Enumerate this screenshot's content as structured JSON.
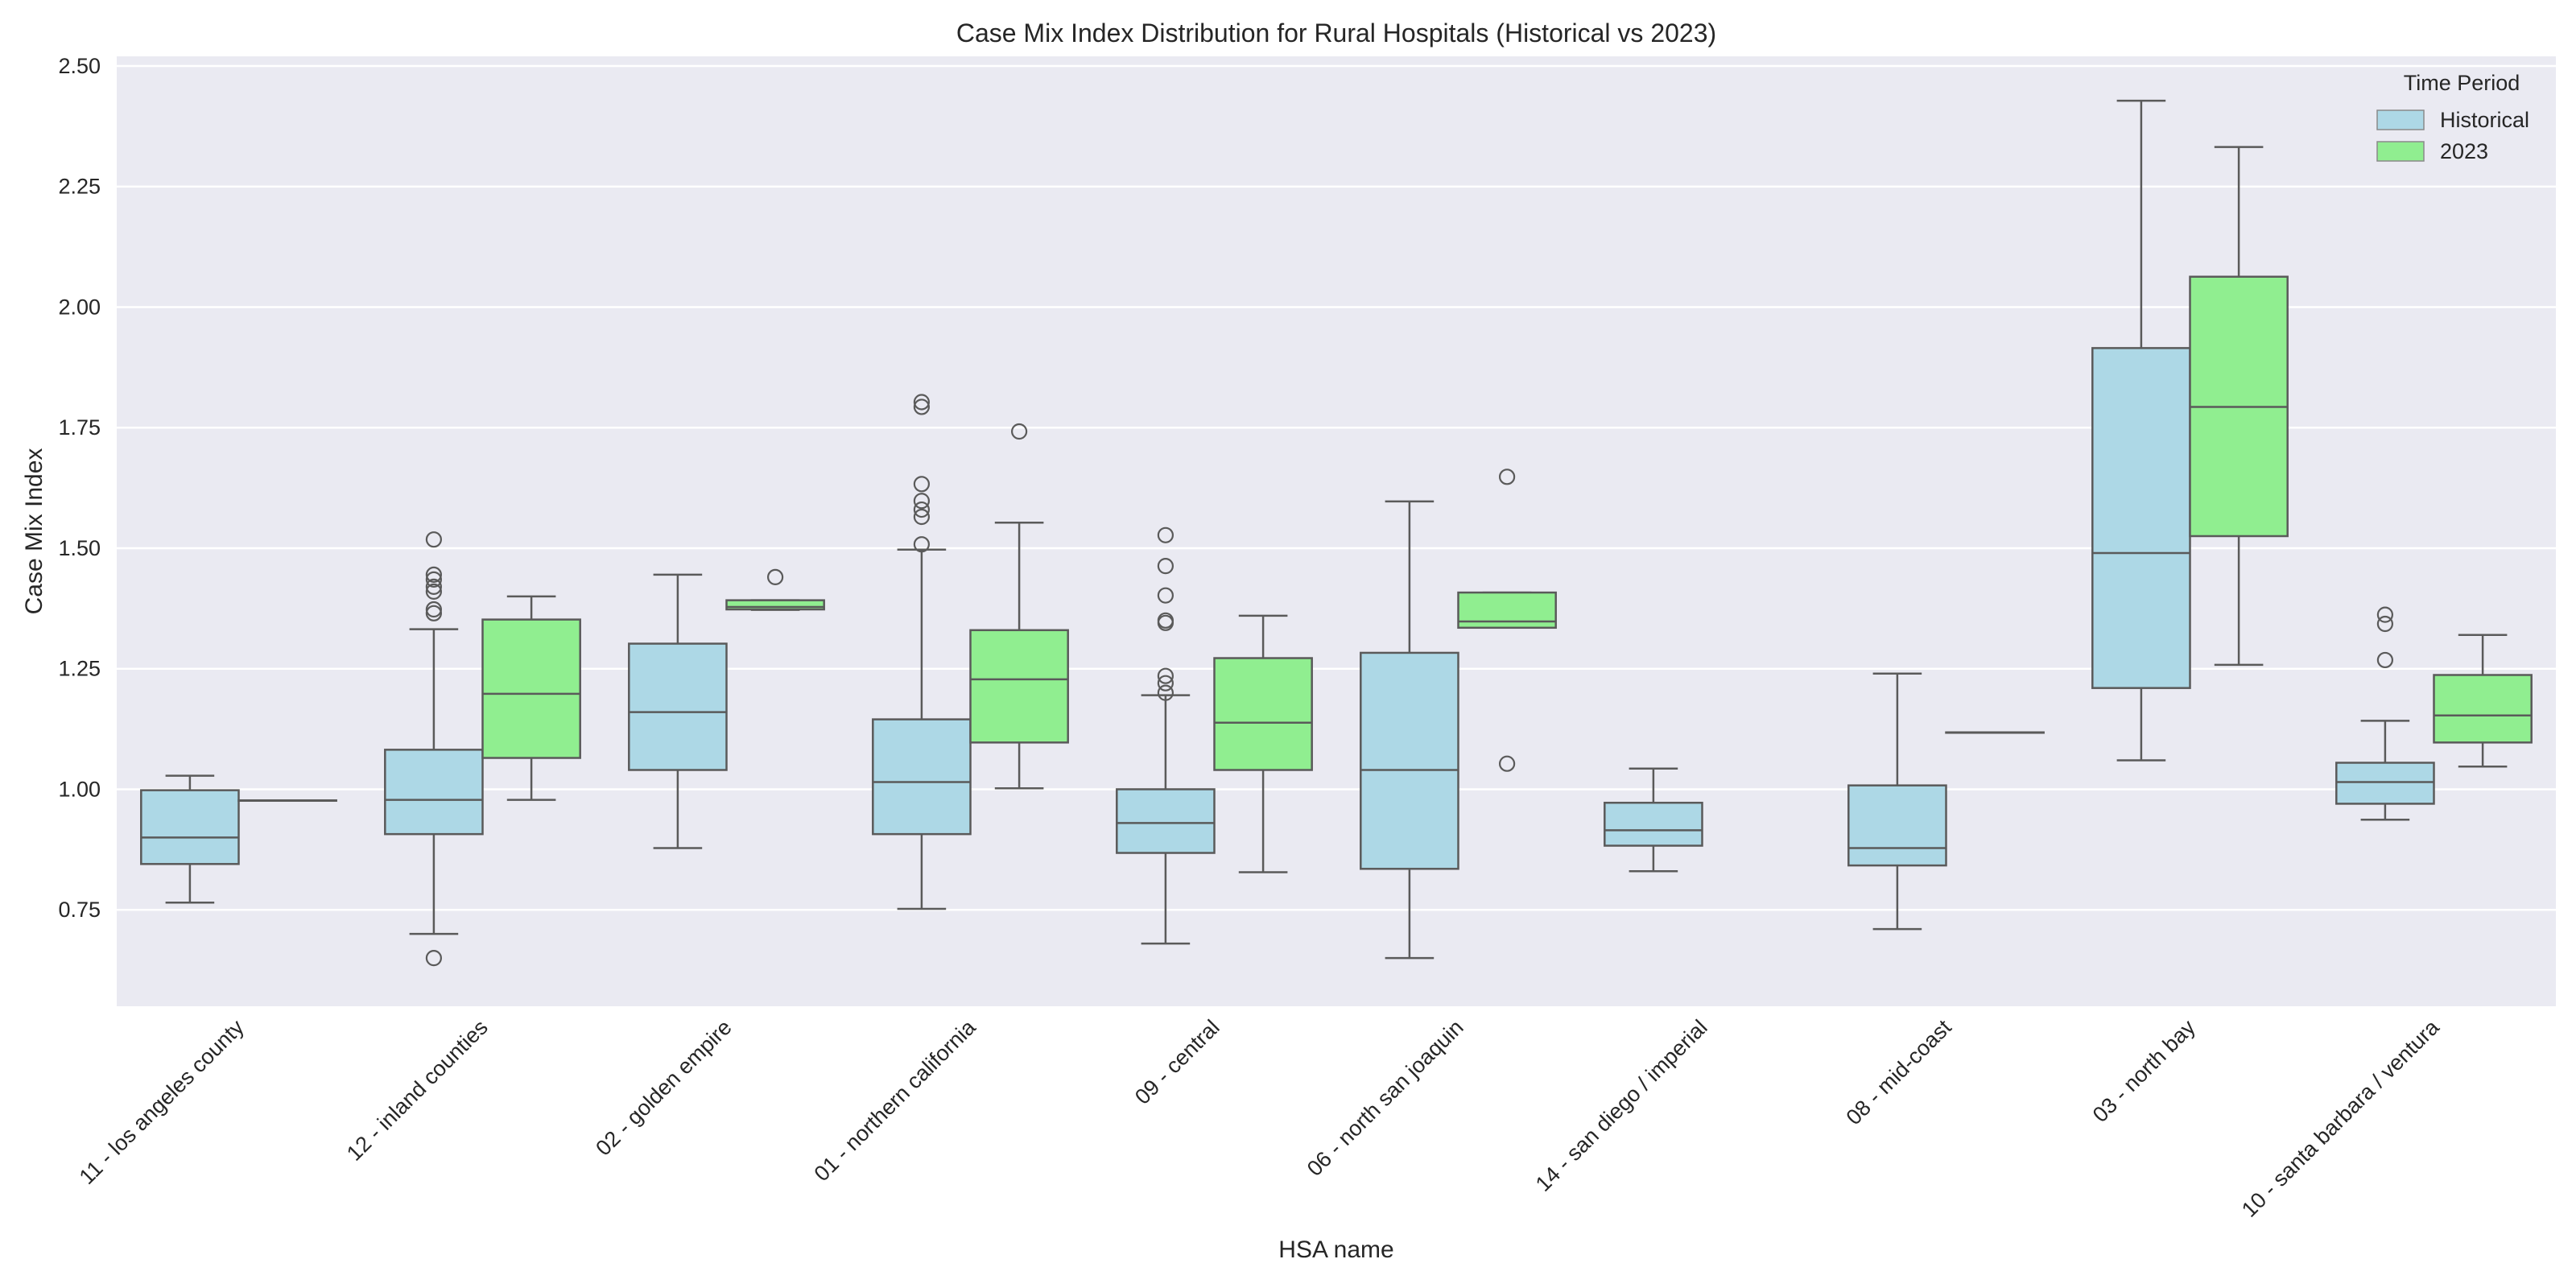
{
  "chart_data": {
    "type": "box",
    "title": "Case Mix Index Distribution for Rural Hospitals (Historical vs 2023)",
    "xlabel": "HSA name",
    "ylabel": "Case Mix Index",
    "ylim": [
      0.55,
      2.52
    ],
    "yticks": [
      0.75,
      1.0,
      1.25,
      1.5,
      1.75,
      2.0,
      2.25,
      2.5
    ],
    "ytick_labels": [
      "0.75",
      "1.00",
      "1.25",
      "1.50",
      "1.75",
      "2.00",
      "2.25",
      "2.50"
    ],
    "grid": true,
    "legend": {
      "title": "Time Period",
      "placement": "top-right"
    },
    "categories": [
      "11 - los angeles county",
      "12 - inland counties",
      "02 - golden empire",
      "01 - northern california",
      "09 - central",
      "06 - north san joaquin",
      "14 - san diego / imperial",
      "08 - mid-coast",
      "03 - north bay",
      "10 - santa barbara / ventura"
    ],
    "series": [
      {
        "name": "Historical",
        "color": "#add8e6",
        "boxes": [
          {
            "whislo": 0.765,
            "q1": 0.845,
            "med": 0.9,
            "q3": 0.998,
            "whishi": 1.028,
            "fliers": []
          },
          {
            "whislo": 0.7,
            "q1": 0.907,
            "med": 0.978,
            "q3": 1.082,
            "whishi": 1.332,
            "fliers": [
              0.65,
              1.365,
              1.373,
              1.41,
              1.42,
              1.435,
              1.445,
              1.518
            ]
          },
          {
            "whislo": 0.878,
            "q1": 1.04,
            "med": 1.16,
            "q3": 1.302,
            "whishi": 1.445,
            "fliers": []
          },
          {
            "whislo": 0.752,
            "q1": 0.907,
            "med": 1.015,
            "q3": 1.145,
            "whishi": 1.497,
            "fliers": [
              1.508,
              1.565,
              1.58,
              1.598,
              1.633,
              1.793,
              1.803
            ]
          },
          {
            "whislo": 0.68,
            "q1": 0.868,
            "med": 0.93,
            "q3": 1.0,
            "whishi": 1.195,
            "fliers": [
              1.2,
              1.22,
              1.235,
              1.345,
              1.35,
              1.402,
              1.463,
              1.527
            ]
          },
          {
            "whislo": 0.65,
            "q1": 0.835,
            "med": 1.04,
            "q3": 1.283,
            "whishi": 1.597,
            "fliers": []
          },
          {
            "whislo": 0.83,
            "q1": 0.883,
            "med": 0.915,
            "q3": 0.972,
            "whishi": 1.043,
            "fliers": []
          },
          {
            "whislo": 0.71,
            "q1": 0.842,
            "med": 0.878,
            "q3": 1.008,
            "whishi": 1.24,
            "fliers": []
          },
          {
            "whislo": 1.06,
            "q1": 1.21,
            "med": 1.49,
            "q3": 1.915,
            "whishi": 2.428,
            "fliers": []
          },
          {
            "whislo": 0.937,
            "q1": 0.97,
            "med": 1.015,
            "q3": 1.055,
            "whishi": 1.142,
            "fliers": [
              1.268,
              1.343,
              1.362
            ]
          }
        ]
      },
      {
        "name": "2023",
        "color": "#90ee90",
        "boxes": [
          {
            "whislo": 0.977,
            "q1": 0.977,
            "med": 0.977,
            "q3": 0.977,
            "whishi": 0.977,
            "fliers": []
          },
          {
            "whislo": 0.978,
            "q1": 1.065,
            "med": 1.198,
            "q3": 1.352,
            "whishi": 1.4,
            "fliers": []
          },
          {
            "whislo": 1.372,
            "q1": 1.373,
            "med": 1.378,
            "q3": 1.392,
            "whishi": 1.392,
            "fliers": [
              1.44
            ]
          },
          {
            "whislo": 1.002,
            "q1": 1.097,
            "med": 1.228,
            "q3": 1.33,
            "whishi": 1.553,
            "fliers": [
              1.742
            ]
          },
          {
            "whislo": 0.828,
            "q1": 1.04,
            "med": 1.138,
            "q3": 1.272,
            "whishi": 1.36,
            "fliers": []
          },
          {
            "whislo": 1.335,
            "q1": 1.335,
            "med": 1.348,
            "q3": 1.408,
            "whishi": 1.408,
            "fliers": [
              1.053,
              1.648
            ]
          },
          null,
          {
            "whislo": 1.118,
            "q1": 1.118,
            "med": 1.118,
            "q3": 1.118,
            "whishi": 1.118,
            "fliers": []
          },
          {
            "whislo": 1.258,
            "q1": 1.525,
            "med": 1.793,
            "q3": 2.063,
            "whishi": 2.332,
            "fliers": []
          },
          {
            "whislo": 1.047,
            "q1": 1.097,
            "med": 1.153,
            "q3": 1.237,
            "whishi": 1.32,
            "fliers": []
          }
        ]
      }
    ]
  }
}
